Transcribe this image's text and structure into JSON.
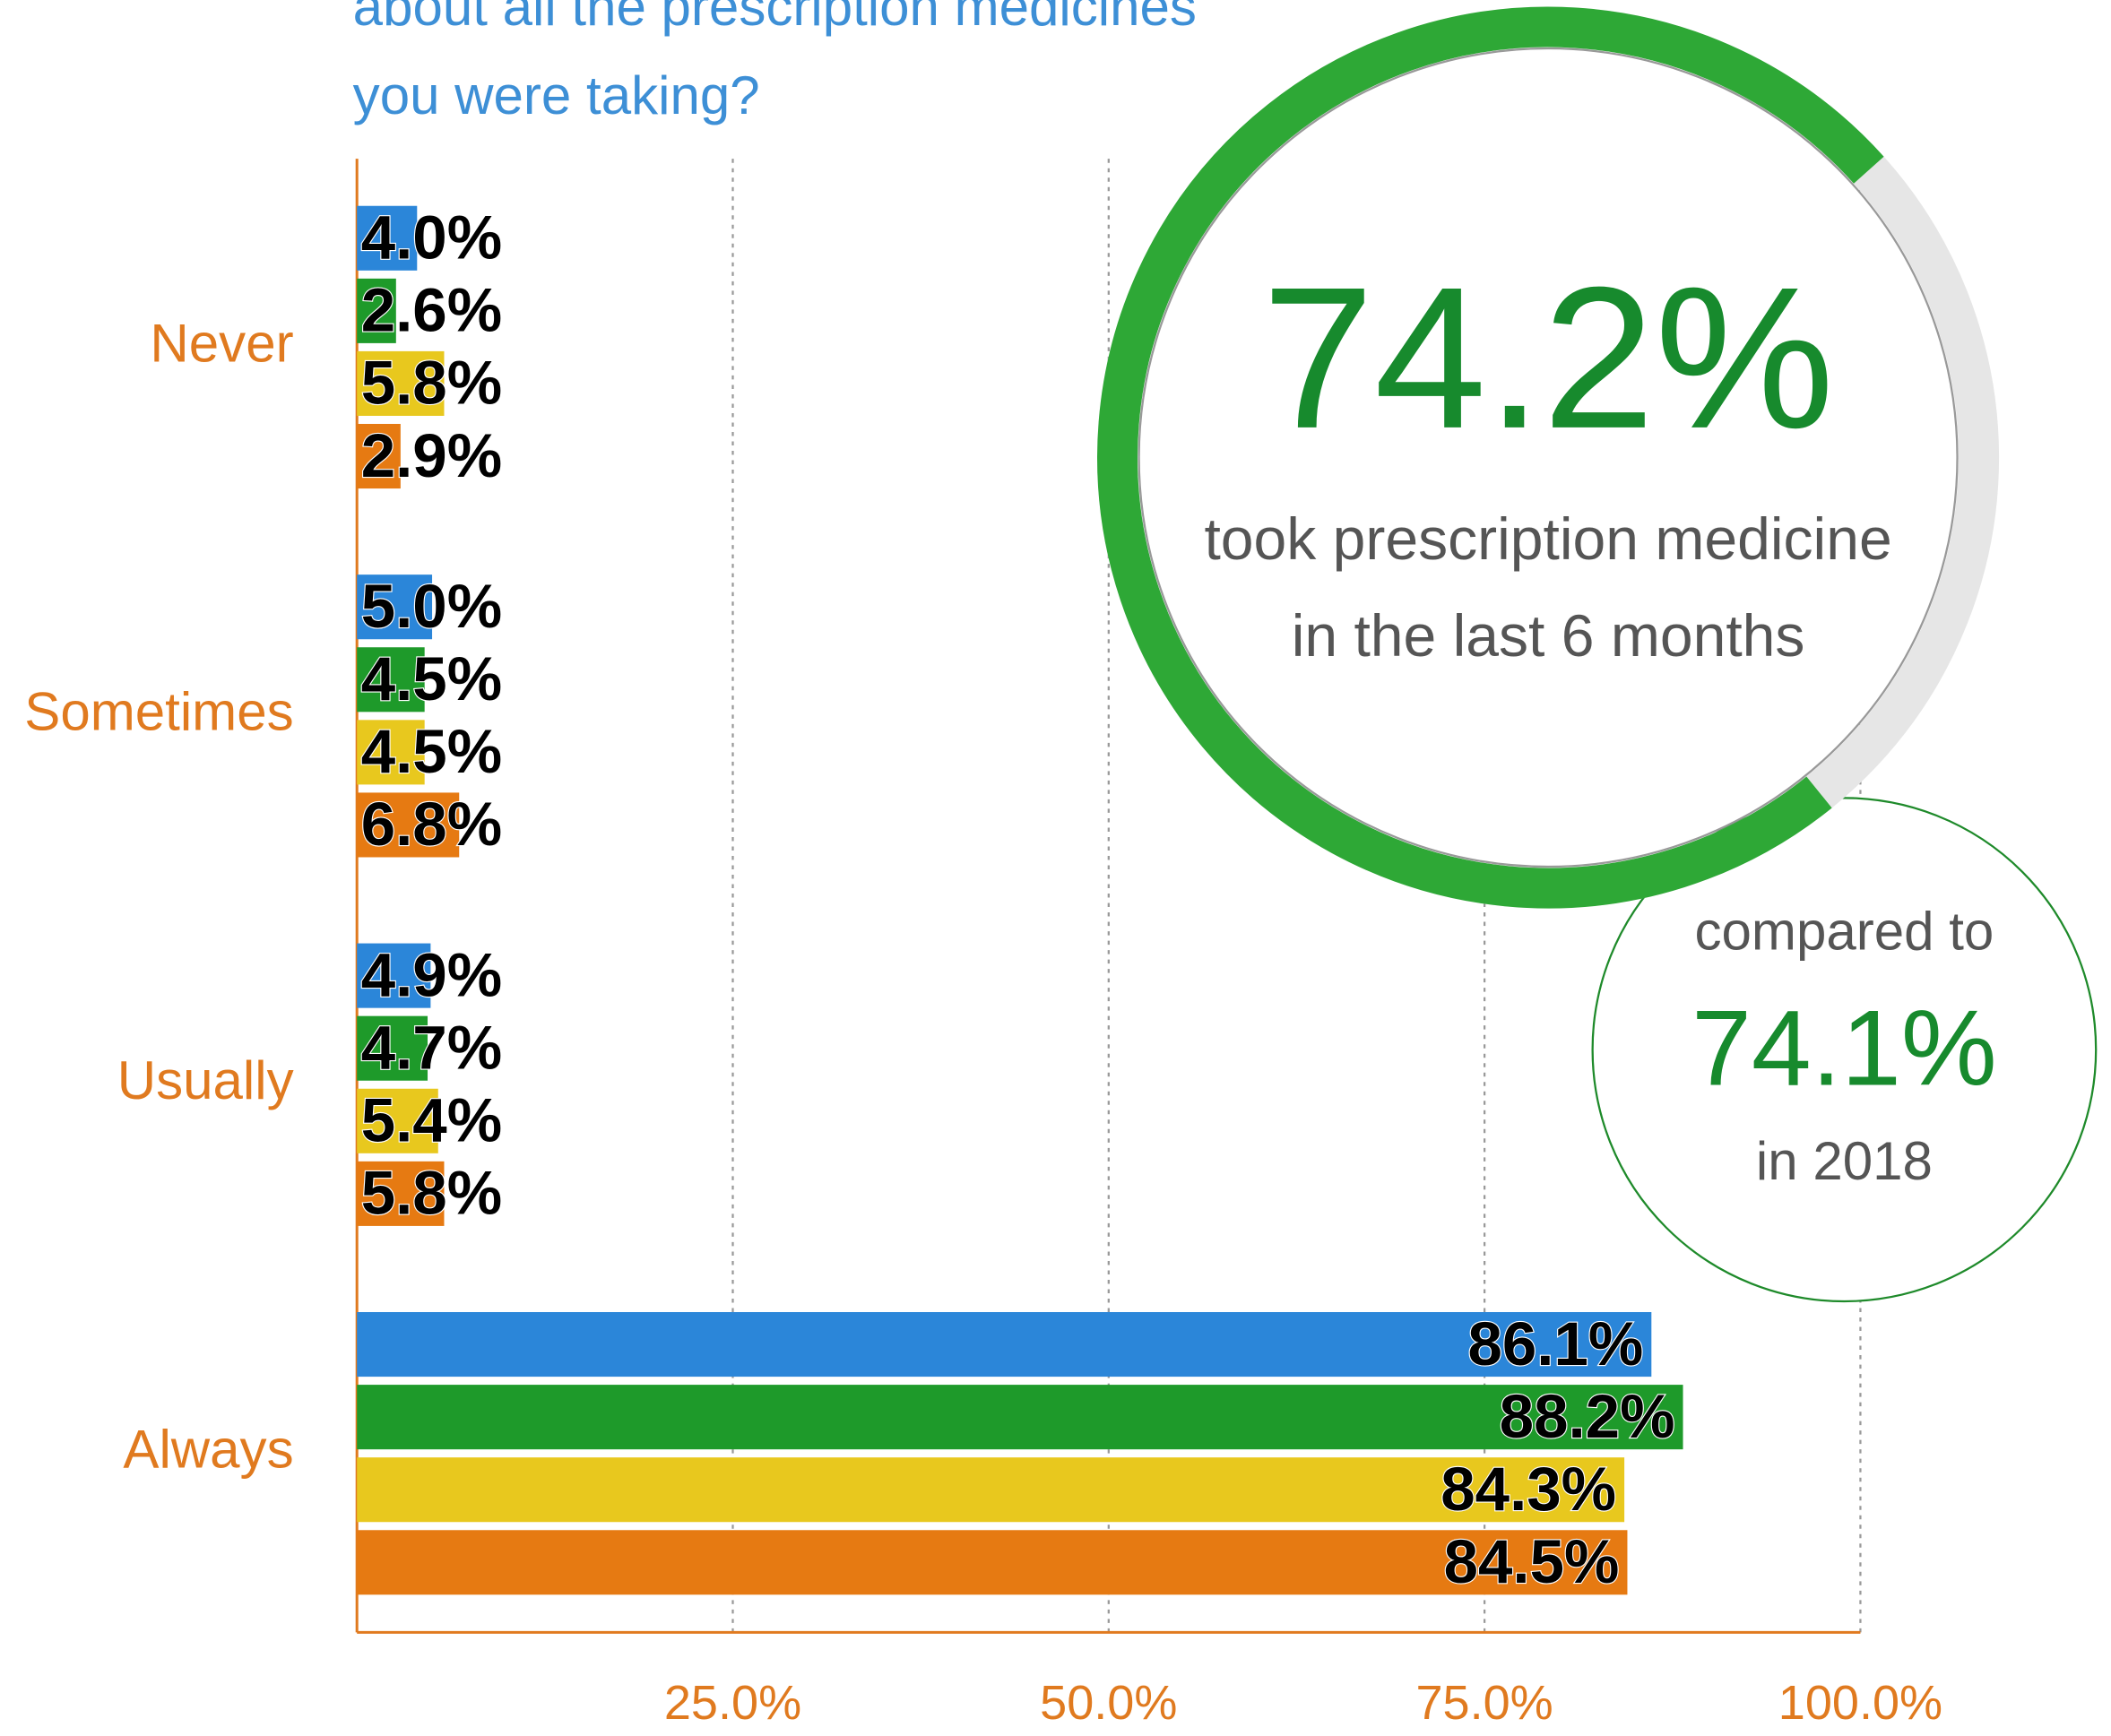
{
  "chart_data": {
    "type": "bar",
    "orientation": "horizontal",
    "title_lines": [
      "about all the prescription medicines",
      "you were taking?"
    ],
    "categories": [
      "Never",
      "Sometimes",
      "Usually",
      "Always"
    ],
    "series": [
      {
        "color": "#2b86d9",
        "values": [
          4.0,
          5.0,
          4.9,
          86.1
        ],
        "value_labels": [
          "4.0%",
          "5.0%",
          "4.9%",
          "86.1%"
        ]
      },
      {
        "color": "#1e9a2a",
        "values": [
          2.6,
          4.5,
          4.7,
          88.2
        ],
        "value_labels": [
          "2.6%",
          "4.5%",
          "4.7%",
          "88.2%"
        ]
      },
      {
        "color": "#e8c81e",
        "values": [
          5.8,
          4.5,
          5.4,
          84.3
        ],
        "value_labels": [
          "5.8%",
          "4.5%",
          "5.4%",
          "84.3%"
        ]
      },
      {
        "color": "#e67a12",
        "values": [
          2.9,
          6.8,
          5.8,
          84.5
        ],
        "value_labels": [
          "2.9%",
          "6.8%",
          "5.8%",
          "84.5%"
        ]
      }
    ],
    "xlim": [
      0,
      100
    ],
    "xticks": [
      {
        "value": 25,
        "label": "25.0%"
      },
      {
        "value": 50,
        "label": "50.0%"
      },
      {
        "value": 75,
        "label": "75.0%"
      },
      {
        "value": 100,
        "label": "100.0%"
      }
    ],
    "grid": true,
    "ring_value": 74.2,
    "ring_label": "74.2%",
    "ring_color": "#2ea836",
    "ring_text": [
      "took prescription medicine",
      "in the last 6 months"
    ],
    "compare_text": [
      "compared to",
      "74.1%",
      "in 2018"
    ]
  }
}
